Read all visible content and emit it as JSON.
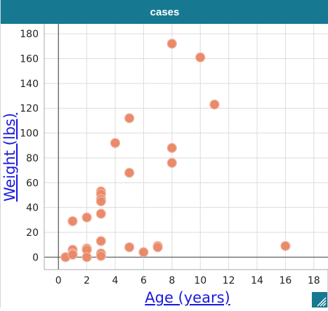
{
  "window": {
    "title": "cases"
  },
  "colors": {
    "titlebar": "#177991",
    "point_fill": "#e98a6b",
    "point_stroke": "#f2b7a3",
    "axis_title": "#1a1ae0"
  },
  "icons": {
    "resize": "resize-grip-icon"
  },
  "chart_data": {
    "type": "scatter",
    "xlabel": "Age (years)",
    "ylabel": "Weight (lbs)",
    "xlim": [
      -1,
      19
    ],
    "ylim": [
      -10,
      188
    ],
    "xticks": [
      0,
      2,
      4,
      6,
      8,
      10,
      12,
      14,
      16,
      18
    ],
    "yticks": [
      0,
      20,
      40,
      60,
      80,
      100,
      120,
      140,
      160,
      180
    ],
    "grid": true,
    "points": [
      {
        "x": 0.5,
        "y": 0
      },
      {
        "x": 1,
        "y": 29
      },
      {
        "x": 1,
        "y": 6
      },
      {
        "x": 1,
        "y": 3
      },
      {
        "x": 1,
        "y": 2
      },
      {
        "x": 2,
        "y": 32
      },
      {
        "x": 2,
        "y": 7
      },
      {
        "x": 2,
        "y": 6
      },
      {
        "x": 2,
        "y": 0
      },
      {
        "x": 3,
        "y": 53
      },
      {
        "x": 3,
        "y": 51
      },
      {
        "x": 3,
        "y": 47
      },
      {
        "x": 3,
        "y": 45
      },
      {
        "x": 3,
        "y": 35
      },
      {
        "x": 3,
        "y": 13
      },
      {
        "x": 3,
        "y": 3
      },
      {
        "x": 3,
        "y": 1
      },
      {
        "x": 4,
        "y": 92
      },
      {
        "x": 5,
        "y": 112
      },
      {
        "x": 5,
        "y": 68
      },
      {
        "x": 5,
        "y": 8
      },
      {
        "x": 6,
        "y": 4
      },
      {
        "x": 7,
        "y": 9
      },
      {
        "x": 7,
        "y": 8
      },
      {
        "x": 8,
        "y": 172
      },
      {
        "x": 8,
        "y": 88
      },
      {
        "x": 8,
        "y": 76
      },
      {
        "x": 10,
        "y": 161
      },
      {
        "x": 11,
        "y": 123
      },
      {
        "x": 16,
        "y": 9
      }
    ]
  }
}
